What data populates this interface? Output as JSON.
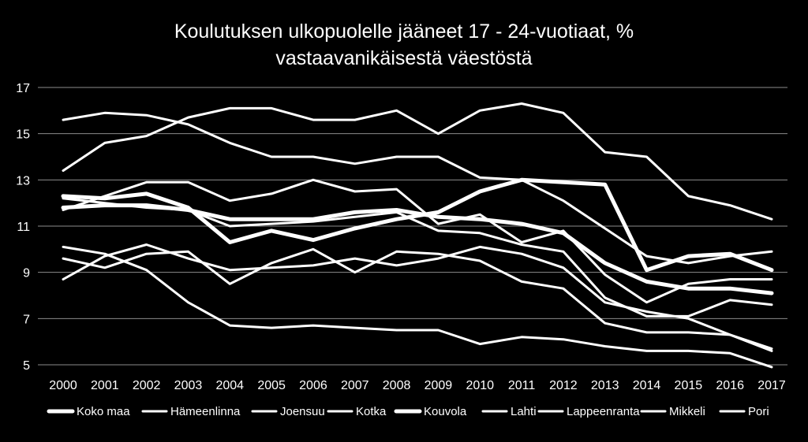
{
  "chart_data": {
    "type": "line",
    "title": [
      "Koulutuksen ulkopuolelle jääneet 17 - 24-vuotiaat, %",
      "vastaavanikäisestä väestöstä"
    ],
    "xlabel": "",
    "ylabel": "",
    "categories": [
      "2000",
      "2001",
      "2002",
      "2003",
      "2004",
      "2005",
      "2006",
      "2007",
      "2008",
      "2009",
      "2010",
      "2011",
      "2012",
      "2013",
      "2014",
      "2015",
      "2016",
      "2017"
    ],
    "ylim": [
      5,
      17
    ],
    "yticks": [
      5,
      7,
      9,
      11,
      13,
      15,
      17
    ],
    "grid": true,
    "legend_position": "bottom",
    "series": [
      {
        "name": "Koko maa",
        "values": [
          11.8,
          11.9,
          11.9,
          11.7,
          11.3,
          11.3,
          11.3,
          11.6,
          11.7,
          11.4,
          11.3,
          11.1,
          10.7,
          9.4,
          8.6,
          8.3,
          8.3,
          8.1
        ],
        "width": 5,
        "color": "#ffffff"
      },
      {
        "name": "Hämeenlinna",
        "values": [
          13.4,
          14.6,
          14.9,
          15.7,
          16.1,
          16.1,
          15.6,
          15.6,
          16.0,
          15.0,
          16.0,
          16.3,
          15.9,
          14.2,
          14.0,
          12.3,
          11.9,
          11.3
        ],
        "width": 3,
        "color": "#ffffff"
      },
      {
        "name": "Joensuu",
        "values": [
          15.6,
          15.9,
          15.8,
          15.4,
          14.6,
          14.0,
          14.0,
          13.7,
          14.0,
          14.0,
          13.1,
          13.0,
          12.1,
          10.9,
          9.7,
          9.4,
          9.7,
          9.9
        ],
        "width": 3,
        "color": "#ffffff"
      },
      {
        "name": "Kotka",
        "values": [
          11.7,
          12.3,
          12.9,
          12.9,
          12.1,
          12.4,
          13.0,
          12.5,
          12.6,
          11.1,
          11.5,
          10.3,
          10.8,
          8.9,
          7.7,
          8.5,
          8.7,
          8.7
        ],
        "width": 3,
        "color": "#ffffff"
      },
      {
        "name": "Kouvola",
        "values": [
          12.3,
          12.2,
          12.4,
          11.8,
          10.3,
          10.8,
          10.4,
          10.9,
          11.3,
          11.6,
          12.5,
          13.0,
          12.9,
          12.8,
          9.1,
          9.7,
          9.8,
          9.1
        ],
        "width": 5,
        "color": "#ffffff"
      },
      {
        "name": "Lahti",
        "values": [
          9.6,
          9.2,
          9.8,
          9.9,
          8.5,
          9.4,
          10.0,
          9.0,
          9.9,
          9.8,
          9.5,
          8.6,
          8.3,
          6.8,
          6.4,
          6.4,
          6.3,
          5.6
        ],
        "width": 3,
        "color": "#ffffff"
      },
      {
        "name": "Lappeenranta",
        "values": [
          10.1,
          9.8,
          9.1,
          7.7,
          6.7,
          6.6,
          6.7,
          6.6,
          6.5,
          6.5,
          5.9,
          6.2,
          6.1,
          5.8,
          5.6,
          5.6,
          5.5,
          4.9
        ],
        "width": 3,
        "color": "#ffffff"
      },
      {
        "name": "Mikkeli",
        "values": [
          12.2,
          12.0,
          11.8,
          11.7,
          11.0,
          11.1,
          11.2,
          11.4,
          11.6,
          10.8,
          10.7,
          10.2,
          9.9,
          7.9,
          7.1,
          7.1,
          7.8,
          7.6
        ],
        "width": 3,
        "color": "#ffffff"
      },
      {
        "name": "Pori",
        "values": [
          8.7,
          9.7,
          10.2,
          9.6,
          9.1,
          9.2,
          9.3,
          9.6,
          9.3,
          9.6,
          10.1,
          9.8,
          9.2,
          7.7,
          7.3,
          7.0,
          6.3,
          5.7
        ],
        "width": 3,
        "color": "#ffffff"
      }
    ]
  }
}
